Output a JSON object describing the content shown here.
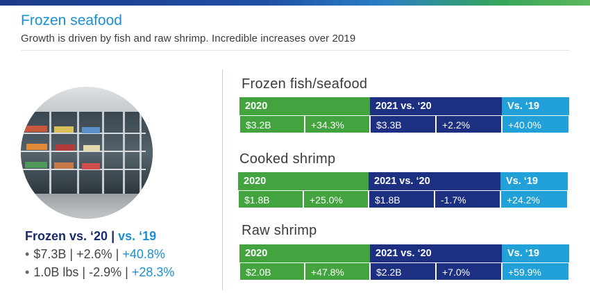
{
  "header": {
    "title": "Frozen seafood",
    "subtitle": "Growth is driven by fish and raw shrimp. Incredible increases over 2019"
  },
  "summary": {
    "heading_main": "Frozen vs. ‘20",
    "heading_sep": "|",
    "heading_vs": "vs. ‘19",
    "lines": [
      {
        "bullet": "•",
        "value": "$7.3B",
        "sep1": "|",
        "vs20": "+2.6%",
        "sep2": "|",
        "vs19": "+40.8%"
      },
      {
        "bullet": "•",
        "value": "1.0B lbs",
        "sep1": "|",
        "vs20": "-2.9%",
        "sep2": "|",
        "vs19": "+28.3%"
      }
    ]
  },
  "sections": [
    {
      "title": "Frozen fish/seafood",
      "headers": {
        "y2020": "2020",
        "y2021": "2021 vs. ‘20",
        "vs19": "Vs. ‘19"
      },
      "values": {
        "sales2020": "$3.2B",
        "growth2020": "+34.3%",
        "sales2021": "$3.3B",
        "growth2021": "+2.2%",
        "vs19": "+40.0%"
      }
    },
    {
      "title": "Cooked shrimp",
      "headers": {
        "y2020": "2020",
        "y2021": "2021 vs. ‘20",
        "vs19": "Vs. ‘19"
      },
      "values": {
        "sales2020": "$1.8B",
        "growth2020": "+25.0%",
        "sales2021": "$1.8B",
        "growth2021": "-1.7%",
        "vs19": "+24.2%"
      }
    },
    {
      "title": "Raw shrimp",
      "headers": {
        "y2020": "2020",
        "y2021": "2021 vs. ‘20",
        "vs19": "Vs. ‘19"
      },
      "values": {
        "sales2020": "$2.0B",
        "growth2020": "+47.8%",
        "sales2021": "$2.2B",
        "growth2021": "+7.0%",
        "vs19": "+59.9%"
      }
    }
  ],
  "colors": {
    "green": "#43a33e",
    "navy": "#1c2f80",
    "light_blue": "#22a0d8",
    "title_blue": "#1a8fd1"
  },
  "image": {
    "subject": "frozen-food-aisle-photo"
  }
}
